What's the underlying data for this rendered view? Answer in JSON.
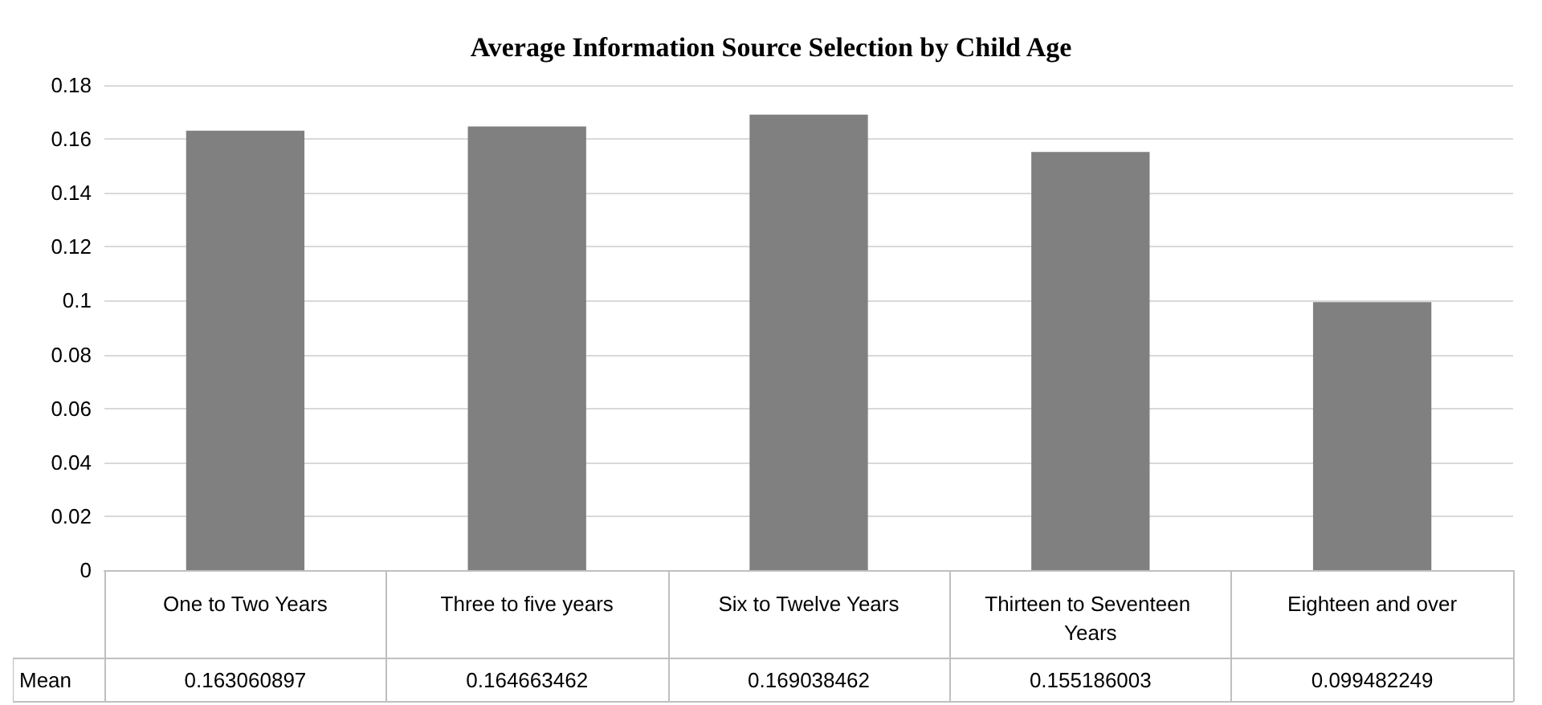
{
  "chart_data": {
    "type": "bar",
    "title": "Average Information Source Selection by Child Age",
    "categories": [
      "One to Two Years",
      "Three to five years",
      "Six to Twelve Years",
      "Thirteen to Seventeen Years",
      "Eighteen and over"
    ],
    "series": [
      {
        "name": "Mean",
        "color": "#808080",
        "values": [
          0.163060897,
          0.164663462,
          0.169038462,
          0.155186003,
          0.099482249
        ]
      }
    ],
    "ylim": [
      0,
      0.18
    ],
    "yticks": [
      0,
      0.02,
      0.04,
      0.06,
      0.08,
      0.1,
      0.12,
      0.14,
      0.16,
      0.18
    ],
    "grid": "y",
    "data_labels": true,
    "legend": false
  }
}
